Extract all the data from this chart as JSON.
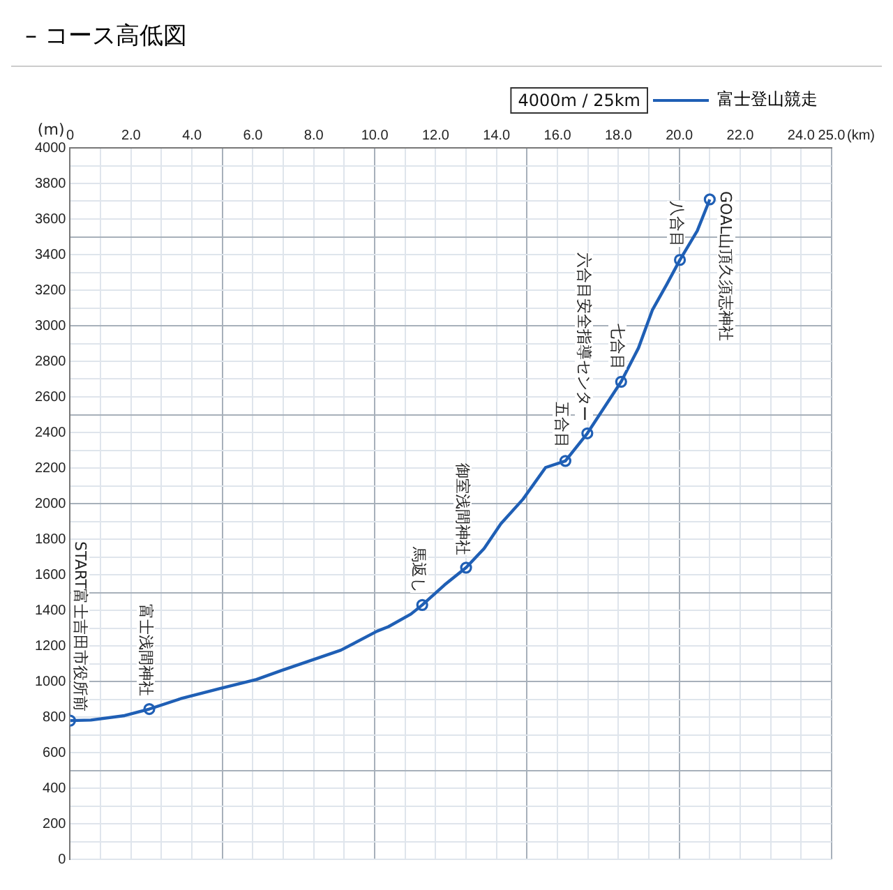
{
  "chart_data": {
    "type": "line",
    "title": "– コース高低図",
    "ylabel": "(m)",
    "xlim": [
      0,
      25
    ],
    "xticks": [
      0,
      {
        "value": 1,
        "label": null
      },
      {
        "value": 2,
        "label": "2.0"
      },
      {
        "value": 3,
        "label": null
      },
      {
        "value": 4,
        "label": "4.0"
      },
      {
        "value": 5,
        "label": null
      },
      {
        "value": 6,
        "label": "6.0"
      },
      {
        "value": 7,
        "label": null
      },
      {
        "value": 8,
        "label": "8.0"
      },
      {
        "value": 9,
        "label": null
      },
      {
        "value": 10,
        "label": "10.0"
      },
      {
        "value": 11,
        "label": null
      },
      {
        "value": 12,
        "label": "12.0"
      },
      {
        "value": 13,
        "label": null
      },
      {
        "value": 14,
        "label": "14.0"
      },
      {
        "value": 15,
        "label": null
      },
      {
        "value": 16,
        "label": "16.0"
      },
      {
        "value": 17,
        "label": null
      },
      {
        "value": 18,
        "label": "18.0"
      },
      {
        "value": 19,
        "label": null
      },
      {
        "value": 20,
        "label": "20.0"
      },
      {
        "value": 21,
        "label": null
      },
      {
        "value": 22,
        "label": "22.0"
      },
      {
        "value": 23,
        "label": null
      },
      {
        "value": 24,
        "label": "24.0"
      },
      {
        "value": 25,
        "label": "25.0"
      }
    ],
    "xlabel": "(km)",
    "ylim": [
      0,
      4000
    ],
    "yticks": [
      0,
      {
        "value": 100,
        "label": null
      },
      200,
      {
        "value": 300,
        "label": null
      },
      400,
      {
        "value": 500,
        "label": null
      },
      600,
      {
        "value": 700,
        "label": null
      },
      800,
      {
        "value": 900,
        "label": null
      },
      1000,
      {
        "value": 1100,
        "label": null
      },
      1200,
      {
        "value": 1300,
        "label": null
      },
      1400,
      {
        "value": 1500,
        "label": null
      },
      1600,
      {
        "value": 1700,
        "label": null
      },
      1800,
      {
        "value": 1900,
        "label": null
      },
      2000,
      {
        "value": 2100,
        "label": null
      },
      2200,
      {
        "value": 2300,
        "label": null
      },
      2400,
      {
        "value": 2500,
        "label": null
      },
      2600,
      {
        "value": 2700,
        "label": null
      },
      2800,
      {
        "value": 2900,
        "label": null
      },
      3000,
      {
        "value": 3100,
        "label": null
      },
      3200,
      {
        "value": 3300,
        "label": null
      },
      3400,
      {
        "value": 3500,
        "label": null
      },
      3600,
      {
        "value": 3700,
        "label": null
      },
      3800,
      {
        "value": 3900,
        "label": null
      },
      4000
    ],
    "grid": true,
    "legend": "top right",
    "series": [
      {
        "name": "富士登山競走",
        "color": "#1f5fb5",
        "marker": "none",
        "line_style": "solid",
        "x": [
          0,
          0.68,
          1.79,
          2.6,
          3.63,
          4.92,
          6.12,
          6.95,
          8.24,
          8.89,
          10.08,
          10.45,
          11.19,
          11.56,
          12.3,
          13.0,
          13.59,
          14.14,
          14.87,
          15.61,
          16.26,
          16.98,
          18.09,
          18.66,
          19.12,
          19.58,
          20.02,
          20.59,
          21.0
        ],
        "values": [
          780,
          783,
          808,
          845,
          903,
          960,
          1011,
          1062,
          1138,
          1176,
          1283,
          1308,
          1379,
          1430,
          1544,
          1640,
          1747,
          1886,
          2025,
          2203,
          2240,
          2395,
          2685,
          2875,
          3090,
          3230,
          3370,
          3534,
          3710
        ]
      },
      {
        "type": "scatter",
        "color": "#1f5fb5",
        "marker": "circle",
        "x": [
          0,
          2.6,
          11.56,
          13.0,
          16.26,
          16.98,
          18.09,
          20.02,
          21.0
        ],
        "values": [
          780,
          845,
          1430,
          1640,
          2240,
          2395,
          2685,
          3370,
          3710
        ]
      }
    ],
    "annotations": [
      "4000m / 25km",
      {
        "text": "START富士吉田市役所前",
        "x": 0,
        "y": 780
      },
      {
        "text": "富士浅間神社",
        "x": 2.6,
        "y": 845
      },
      {
        "text": "馬返し",
        "x": 11.56,
        "y": 1430
      },
      {
        "text": "御室浅間神社",
        "x": 13.0,
        "y": 1640
      },
      {
        "text": "五合目",
        "x": 16.26,
        "y": 2240
      },
      {
        "text": "六合目安全指導センター",
        "x": 16.98,
        "y": 2395
      },
      {
        "text": "七合目",
        "x": 18.09,
        "y": 2685
      },
      {
        "text": "八合目",
        "x": 20.02,
        "y": 3370
      },
      {
        "text": "GOAL山頂久須志神社",
        "x": 21.0,
        "y": 3710
      }
    ]
  }
}
